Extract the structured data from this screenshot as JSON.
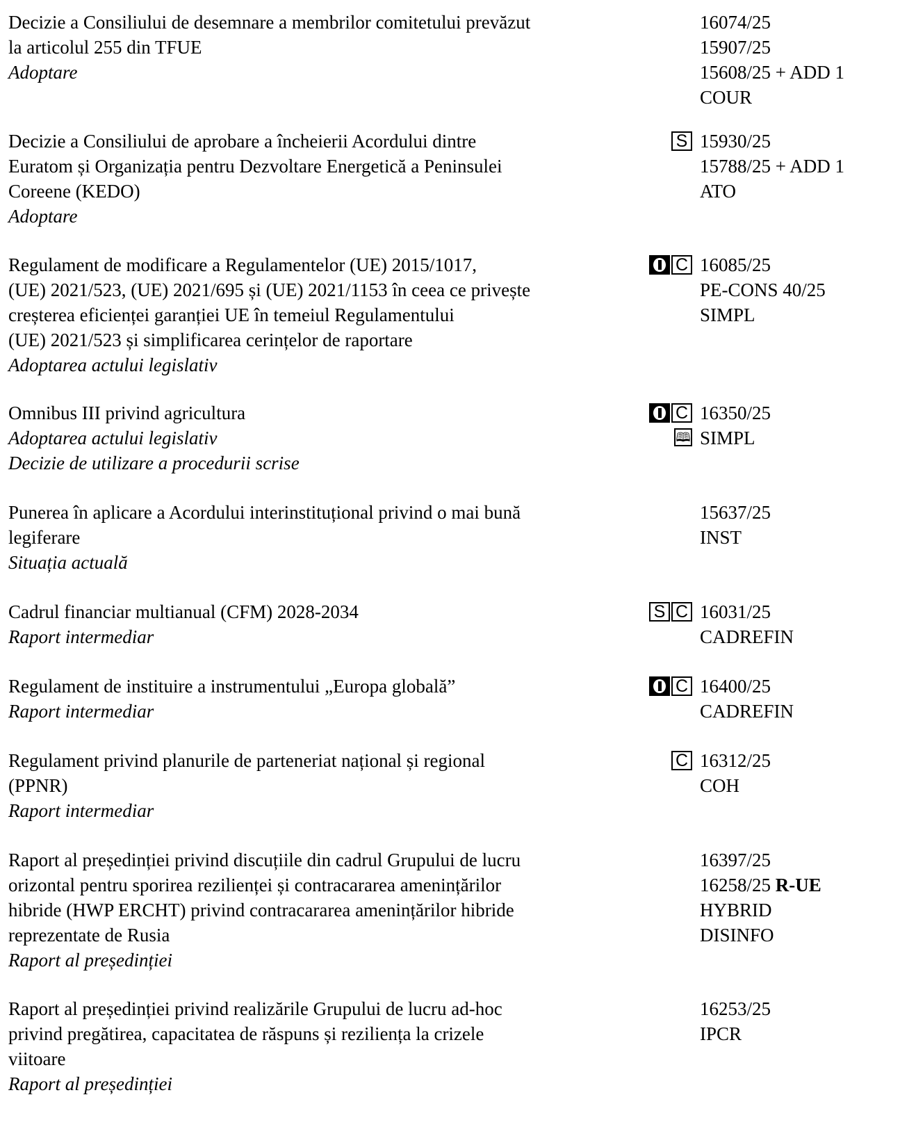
{
  "items": [
    {
      "lines": [
        "Decizie a Consiliului de desemnare a membrilor comitetului prevăzut",
        "la articolul 255 din TFUE"
      ],
      "action": "Adoptare",
      "refs": [
        "16074/25",
        "15907/25",
        "15608/25 + ADD 1",
        "COUR"
      ]
    },
    {
      "lines": [
        "Decizie a Consiliului de aprobare a încheierii Acordului dintre",
        "Euratom și Organizația pentru Dezvoltare Energetică a Peninsulei",
        "Coreene (KEDO)"
      ],
      "action": "Adoptare",
      "markers": [
        "S"
      ],
      "refs": [
        "15930/25",
        "15788/25 + ADD 1",
        "ATO"
      ]
    },
    {
      "lines": [
        "Regulament de modificare a Regulamentelor (UE) 2015/1017,",
        "(UE) 2021/523, (UE) 2021/695 și (UE) 2021/1153 în ceea ce privește",
        "creșterea eficienței garanției UE în temeiul Regulamentului",
        "(UE) 2021/523 și simplificarea cerințelor de raportare"
      ],
      "action": "Adoptarea actului legislativ",
      "markers": [
        "O",
        "C"
      ],
      "refs": [
        "16085/25",
        "PE-CONS 40/25",
        "SIMPL"
      ]
    },
    {
      "lines": [
        "Omnibus III privind agricultura"
      ],
      "action": "Adoptarea actului legislativ",
      "action2": "Decizie de utilizare a procedurii scrise",
      "markers": [
        "O",
        "C",
        "book"
      ],
      "refs": [
        "16350/25",
        "SIMPL"
      ]
    },
    {
      "lines": [
        "Punerea în aplicare a Acordului interinstituțional privind o mai bună",
        "legiferare"
      ],
      "action": "Situația actuală",
      "refs": [
        "15637/25",
        "INST"
      ]
    },
    {
      "lines": [
        "Cadrul financiar multianual (CFM) 2028-2034"
      ],
      "action": "Raport intermediar",
      "markers": [
        "S",
        "C"
      ],
      "refs": [
        "16031/25",
        "CADREFIN"
      ]
    },
    {
      "lines": [
        "Regulament de instituire a instrumentului „Europa globală”"
      ],
      "action": "Raport intermediar",
      "markers": [
        "O",
        "C"
      ],
      "refs": [
        "16400/25",
        "CADREFIN"
      ]
    },
    {
      "lines": [
        "Regulament privind planurile de parteneriat național și regional",
        "(PPNR)"
      ],
      "action": "Raport intermediar",
      "markers": [
        "C"
      ],
      "refs": [
        "16312/25",
        "COH"
      ]
    },
    {
      "lines": [
        "Raport al președinției privind discuțiile din cadrul Grupului de lucru",
        "orizontal pentru sporirea rezilienței și contracararea amenințărilor",
        "hibride (HWP ERCHT) privind contracararea amenințărilor hibride",
        "reprezentate de Rusia"
      ],
      "action": "Raport al președinției",
      "refs": [
        "16397/25",
        "16258/25",
        "HYBRID",
        "DISINFO"
      ],
      "ref_bold_suffix": "R-UE"
    },
    {
      "lines": [
        "Raport al președinției privind realizările Grupului de lucru ad-hoc",
        "privind pregătirea, capacitatea de răspuns și reziliența la crizele",
        "viitoare"
      ],
      "action": "Raport al președinției",
      "refs": [
        "16253/25",
        "IPCR"
      ]
    }
  ],
  "marker_labels": {
    "S": "S",
    "C": "C"
  }
}
